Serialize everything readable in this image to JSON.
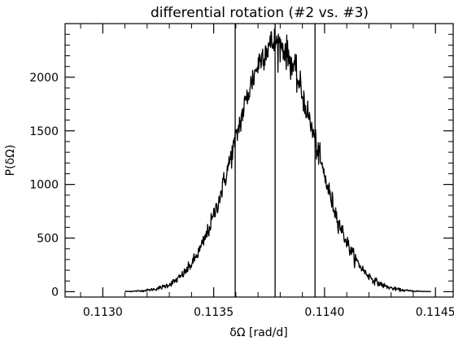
{
  "chart_data": {
    "type": "line",
    "title": "differential rotation (#2 vs. #3)",
    "xlabel": "δΩ [rad/d]",
    "ylabel": "P(δΩ)",
    "xlim": [
      0.11283,
      0.11458
    ],
    "ylim": [
      -50,
      2500
    ],
    "grid": false,
    "legend": "none",
    "x_ticks": [
      {
        "value": 0.113,
        "label": "0.1130"
      },
      {
        "value": 0.1135,
        "label": "0.1135"
      },
      {
        "value": 0.114,
        "label": "0.1140"
      },
      {
        "value": 0.1145,
        "label": "0.1145"
      }
    ],
    "y_ticks": [
      {
        "value": 0,
        "label": "0"
      },
      {
        "value": 500,
        "label": "500"
      },
      {
        "value": 1000,
        "label": "1000"
      },
      {
        "value": 1500,
        "label": "1500"
      },
      {
        "value": 2000,
        "label": "2000"
      }
    ],
    "distribution": {
      "center": 0.113777,
      "sigma": 0.00018,
      "peak": 2320
    },
    "vertical_lines": [
      0.113597,
      0.113777,
      0.113957
    ],
    "series": [
      {
        "x": [
          0.1132,
          0.11325,
          0.1133,
          0.11335,
          0.1134,
          0.11345,
          0.1135,
          0.11355,
          0.11358,
          0.1136,
          0.11362,
          0.11365,
          0.11368,
          0.1137,
          0.11372,
          0.11374,
          0.11376,
          0.11378,
          0.1138,
          0.11382,
          0.11384,
          0.11386,
          0.11388,
          0.1139,
          0.11393,
          0.11396,
          0.11398,
          0.114,
          0.11403,
          0.11405,
          0.1141,
          0.11415,
          0.1142,
          0.11425,
          0.1143,
          0.11435
        ],
        "y": [
          2,
          10,
          35,
          110,
          270,
          560,
          990,
          1350,
          1480,
          1610,
          1780,
          1960,
          2130,
          2230,
          2290,
          2330,
          2310,
          2340,
          2290,
          2300,
          2230,
          2180,
          2080,
          1970,
          1810,
          1580,
          1450,
          1320,
          1050,
          900,
          600,
          310,
          140,
          50,
          15,
          3
        ]
      }
    ]
  }
}
